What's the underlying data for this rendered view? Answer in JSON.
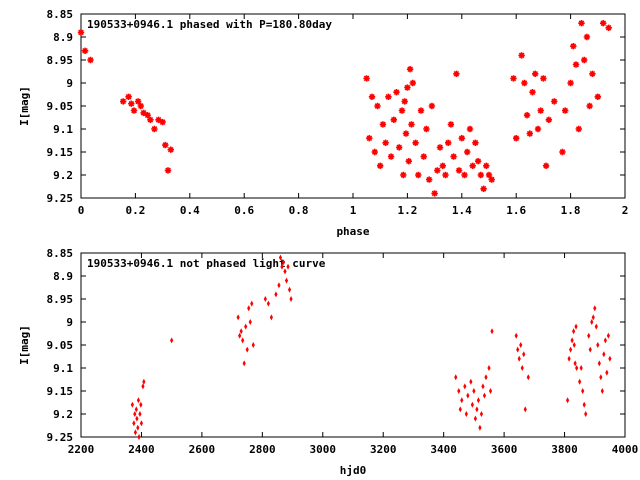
{
  "colors": {
    "points": "#ff0000",
    "axis": "#000000",
    "background": "#ffffff"
  },
  "chart_data": [
    {
      "type": "scatter",
      "title": "190533+0946.1 phased with P=180.80day",
      "xlabel": "phase",
      "ylabel": "I[mag]",
      "xlim": [
        0,
        2
      ],
      "ylim": [
        8.85,
        9.25
      ],
      "y_inverted": true,
      "xticks": [
        "0",
        "0.2",
        "0.4",
        "0.6",
        "0.8",
        "1",
        "1.2",
        "1.4",
        "1.6",
        "1.8",
        "2"
      ],
      "yticks": [
        "8.85",
        "8.9",
        "8.95",
        "9",
        "9.05",
        "9.1",
        "9.15",
        "9.2",
        "9.25"
      ],
      "grid": false,
      "marker": "star",
      "series": [
        {
          "x": [
            0.0,
            0.015,
            0.035,
            0.155,
            0.175,
            0.185,
            0.195,
            0.21,
            0.22,
            0.23,
            0.245,
            0.255,
            0.27,
            0.285,
            0.3,
            0.31,
            0.32,
            0.33,
            1.05,
            1.06,
            1.07,
            1.08,
            1.09,
            1.1,
            1.11,
            1.12,
            1.13,
            1.14,
            1.15,
            1.16,
            1.17,
            1.18,
            1.185,
            1.19,
            1.195,
            1.2,
            1.205,
            1.21,
            1.215,
            1.22,
            1.23,
            1.24,
            1.25,
            1.26,
            1.27,
            1.28,
            1.29,
            1.3,
            1.31,
            1.32,
            1.33,
            1.34,
            1.35,
            1.36,
            1.37,
            1.38,
            1.39,
            1.4,
            1.41,
            1.42,
            1.43,
            1.44,
            1.45,
            1.46,
            1.47,
            1.48,
            1.49,
            1.5,
            1.51,
            1.59,
            1.6,
            1.62,
            1.63,
            1.64,
            1.65,
            1.66,
            1.67,
            1.68,
            1.69,
            1.7,
            1.71,
            1.72,
            1.74,
            1.77,
            1.78,
            1.8,
            1.81,
            1.82,
            1.83,
            1.84,
            1.85,
            1.86,
            1.87,
            1.88,
            1.9,
            1.92,
            1.94
          ],
          "y": [
            8.89,
            8.93,
            8.95,
            9.04,
            9.03,
            9.045,
            9.06,
            9.04,
            9.05,
            9.065,
            9.07,
            9.08,
            9.1,
            9.08,
            9.085,
            9.135,
            9.19,
            9.145,
            8.99,
            9.12,
            9.03,
            9.15,
            9.05,
            9.18,
            9.09,
            9.13,
            9.03,
            9.16,
            9.08,
            9.02,
            9.14,
            9.06,
            9.2,
            9.04,
            9.11,
            9.01,
            9.17,
            8.97,
            9.09,
            9.0,
            9.13,
            9.2,
            9.06,
            9.16,
            9.1,
            9.21,
            9.05,
            9.24,
            9.19,
            9.14,
            9.18,
            9.2,
            9.13,
            9.09,
            9.16,
            8.98,
            9.19,
            9.12,
            9.2,
            9.15,
            9.1,
            9.18,
            9.13,
            9.17,
            9.2,
            9.23,
            9.18,
            9.2,
            9.21,
            8.99,
            9.12,
            8.94,
            9.0,
            9.07,
            9.11,
            9.02,
            8.98,
            9.1,
            9.06,
            8.99,
            9.18,
            9.08,
            9.04,
            9.15,
            9.06,
            9.0,
            8.92,
            8.96,
            9.1,
            8.87,
            8.95,
            8.9,
            9.05,
            8.98,
            9.03,
            8.87,
            8.88
          ]
        }
      ]
    },
    {
      "type": "scatter",
      "title": "190533+0946.1 not phased light curve",
      "xlabel": "hjd0",
      "ylabel": "I[mag]",
      "xlim": [
        2200,
        4000
      ],
      "ylim": [
        8.85,
        9.25
      ],
      "y_inverted": true,
      "xticks": [
        "2200",
        "2400",
        "2600",
        "2800",
        "3000",
        "3200",
        "3400",
        "3600",
        "3800",
        "4000"
      ],
      "yticks": [
        "8.85",
        "8.9",
        "8.95",
        "9",
        "9.05",
        "9.1",
        "9.15",
        "9.2",
        "9.25"
      ],
      "grid": false,
      "marker": "diamond",
      "series": [
        {
          "x": [
            2370,
            2375,
            2378,
            2380,
            2383,
            2385,
            2388,
            2390,
            2392,
            2395,
            2398,
            2400,
            2405,
            2408,
            2500,
            2720,
            2725,
            2730,
            2735,
            2740,
            2745,
            2750,
            2755,
            2760,
            2765,
            2770,
            2810,
            2820,
            2830,
            2845,
            2855,
            2860,
            2865,
            2870,
            2875,
            2880,
            2885,
            2890,
            2895,
            3440,
            3450,
            3455,
            3460,
            3470,
            3475,
            3480,
            3490,
            3495,
            3500,
            3505,
            3510,
            3515,
            3520,
            3525,
            3530,
            3535,
            3540,
            3550,
            3555,
            3560,
            3640,
            3645,
            3650,
            3655,
            3660,
            3665,
            3670,
            3680,
            3810,
            3815,
            3820,
            3825,
            3830,
            3832,
            3835,
            3838,
            3840,
            3850,
            3855,
            3860,
            3865,
            3870,
            3880,
            3885,
            3890,
            3895,
            3900,
            3905,
            3910,
            3915,
            3920,
            3925,
            3930,
            3935,
            3940,
            3945,
            3950
          ],
          "y": [
            9.18,
            9.22,
            9.2,
            9.24,
            9.19,
            9.21,
            9.23,
            9.17,
            9.25,
            9.2,
            9.18,
            9.22,
            9.14,
            9.13,
            9.04,
            8.99,
            9.03,
            9.02,
            9.04,
            9.09,
            9.01,
            9.06,
            8.97,
            9.0,
            8.96,
            9.05,
            8.95,
            8.96,
            8.99,
            8.94,
            8.92,
            8.86,
            8.88,
            8.87,
            8.89,
            8.91,
            8.88,
            8.93,
            8.95,
            9.12,
            9.15,
            9.19,
            9.17,
            9.14,
            9.2,
            9.16,
            9.13,
            9.18,
            9.15,
            9.21,
            9.19,
            9.17,
            9.23,
            9.2,
            9.14,
            9.16,
            9.12,
            9.1,
            9.15,
            9.02,
            9.03,
            9.06,
            9.08,
            9.05,
            9.1,
            9.07,
            9.19,
            9.12,
            9.17,
            9.08,
            9.06,
            9.04,
            9.02,
            9.05,
            9.09,
            9.01,
            9.1,
            9.13,
            9.1,
            9.15,
            9.18,
            9.2,
            9.03,
            9.06,
            9.0,
            8.99,
            8.97,
            9.01,
            9.05,
            9.09,
            9.12,
            9.15,
            9.07,
            9.04,
            9.11,
            9.03,
            9.08
          ]
        }
      ]
    }
  ]
}
